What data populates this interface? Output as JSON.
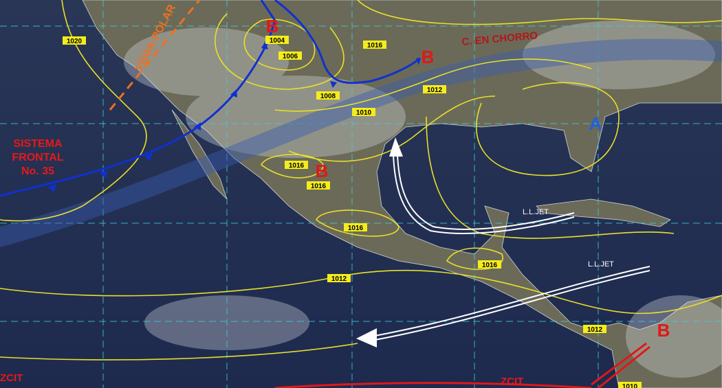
{
  "annotations": {
    "frontal_system": [
      "SISTEMA",
      "FRONTAL",
      "No. 35"
    ],
    "polar_trough": "VGDA-POLAR",
    "jet_stream": "C. EN CHORRO",
    "low_level_jets": [
      "L.L.JET",
      "L.L.JET"
    ],
    "itcz": [
      "ZCIT",
      "ZCIT"
    ]
  },
  "pressure_centers": [
    "B",
    "B",
    "B",
    "B",
    "A"
  ],
  "isobar_labels": [
    "1020",
    "1004",
    "1006",
    "1008",
    "1010",
    "1016",
    "1012",
    "1016",
    "1016",
    "1016",
    "1016",
    "1012",
    "1012",
    "1010"
  ]
}
